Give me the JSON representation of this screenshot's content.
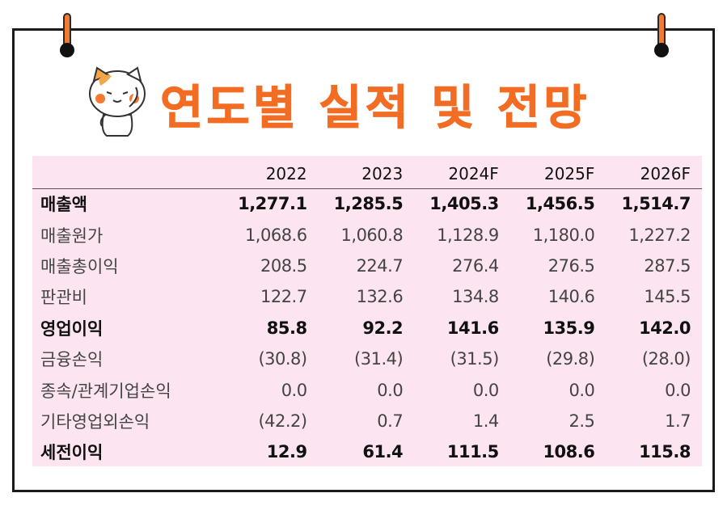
{
  "title": "연도별 실적 및 전망",
  "colors": {
    "accent": "#f26d23",
    "table_background": "#fce4f1",
    "border": "#1a1a1a"
  },
  "table": {
    "headers": [
      "",
      "2022",
      "2023",
      "2024F",
      "2025F",
      "2026F"
    ],
    "rows": [
      {
        "label": "매출액",
        "values": [
          "1,277.1",
          "1,285.5",
          "1,405.3",
          "1,456.5",
          "1,514.7"
        ],
        "bold": true
      },
      {
        "label": "매출원가",
        "values": [
          "1,068.6",
          "1,060.8",
          "1,128.9",
          "1,180.0",
          "1,227.2"
        ],
        "bold": false
      },
      {
        "label": "매출총이익",
        "values": [
          "208.5",
          "224.7",
          "276.4",
          "276.5",
          "287.5"
        ],
        "bold": false
      },
      {
        "label": "판관비",
        "values": [
          "122.7",
          "132.6",
          "134.8",
          "140.6",
          "145.5"
        ],
        "bold": false
      },
      {
        "label": "영업이익",
        "values": [
          "85.8",
          "92.2",
          "141.6",
          "135.9",
          "142.0"
        ],
        "bold": true
      },
      {
        "label": "금융손익",
        "values": [
          "(30.8)",
          "(31.4)",
          "(31.5)",
          "(29.8)",
          "(28.0)"
        ],
        "bold": false
      },
      {
        "label": "종속/관계기업손익",
        "values": [
          "0.0",
          "0.0",
          "0.0",
          "0.0",
          "0.0"
        ],
        "bold": false
      },
      {
        "label": "기타영업외손익",
        "values": [
          "(42.2)",
          "0.7",
          "1.4",
          "2.5",
          "1.7"
        ],
        "bold": false
      },
      {
        "label": "세전이익",
        "values": [
          "12.9",
          "61.4",
          "111.5",
          "108.6",
          "115.8"
        ],
        "bold": true
      }
    ]
  },
  "icons": {
    "mascot": "cat-mascot-icon",
    "rings": "binder-ring-icon"
  }
}
